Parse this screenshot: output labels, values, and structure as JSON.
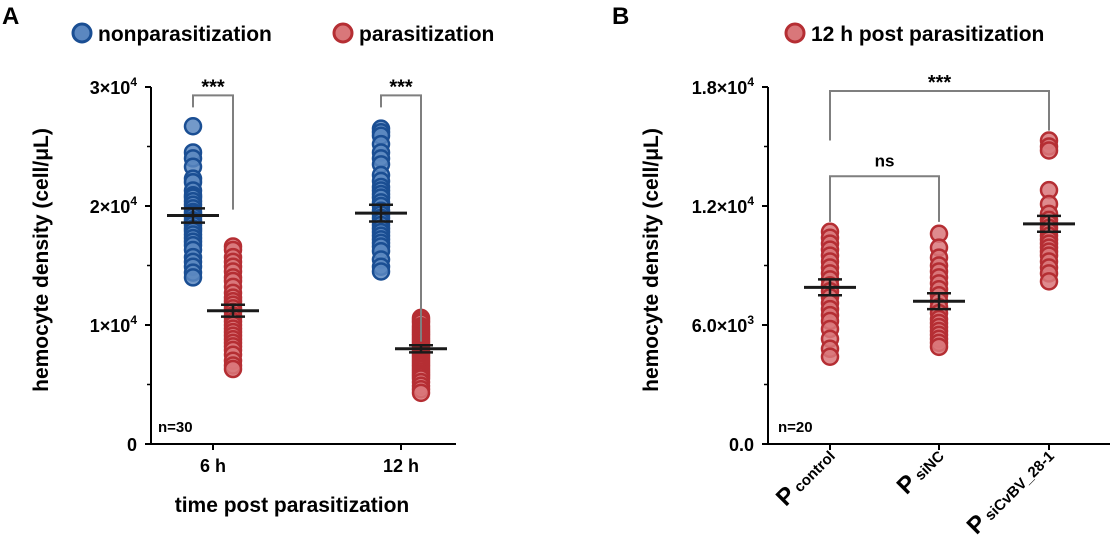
{
  "figure": {
    "colors": {
      "blue_fill": "#5b87c0",
      "blue_stroke": "#1a4e93",
      "red_fill": "#d9777a",
      "red_stroke": "#b52e33",
      "axis": "#000000",
      "bracket": "#7f7f7f",
      "summary": "#1a1a1a"
    }
  },
  "chart_data": [
    {
      "panel_label": "A",
      "type": "scatter",
      "subtype": "dot_plot_mean_sem",
      "ylabel": "hemocyte density (cell/μL)",
      "xlabel": "time post parasitization",
      "ylim": [
        0,
        30000
      ],
      "yticks": [
        {
          "value": 0,
          "base": "0",
          "exp": ""
        },
        {
          "value": 10000,
          "base": "1×10",
          "exp": "4"
        },
        {
          "value": 20000,
          "base": "2×10",
          "exp": "4"
        },
        {
          "value": 30000,
          "base": "3×10",
          "exp": "4"
        }
      ],
      "minor_ticks": [
        5000,
        15000,
        25000
      ],
      "categories": [
        "6 h",
        "12 h"
      ],
      "note": "n=30",
      "legend": [
        {
          "label": "nonparasitization",
          "series": 0
        },
        {
          "label": "parasitization",
          "series": 1
        }
      ],
      "series": [
        {
          "name": "nonparasitization",
          "color": "blue",
          "groups": [
            {
              "category": 0,
              "mean": 19200,
              "sem": 600,
              "values": [
                26700,
                24500,
                24000,
                23300,
                22300,
                22000,
                21300,
                20900,
                20700,
                20400,
                20100,
                19800,
                19500,
                19300,
                19100,
                18800,
                18600,
                18400,
                18100,
                17900,
                17600,
                17300,
                17000,
                16700,
                16300,
                15700,
                15300,
                14900,
                14400,
                14000
              ]
            },
            {
              "category": 1,
              "mean": 19400,
              "sem": 700,
              "values": [
                26500,
                26200,
                25900,
                25200,
                24500,
                24000,
                23500,
                22600,
                22100,
                21600,
                21300,
                21000,
                20700,
                20300,
                20000,
                19600,
                19300,
                19000,
                18700,
                18400,
                18100,
                17800,
                17500,
                17200,
                16900,
                16600,
                16200,
                15500,
                14900,
                14500
              ]
            }
          ]
        },
        {
          "name": "parasitization",
          "color": "red",
          "groups": [
            {
              "category": 0,
              "mean": 11200,
              "sem": 500,
              "values": [
                16600,
                16300,
                15700,
                15300,
                14900,
                14500,
                14000,
                13700,
                13200,
                12700,
                12300,
                12000,
                11700,
                11400,
                11100,
                10800,
                10600,
                10300,
                10000,
                9700,
                9400,
                9100,
                8800,
                8500,
                8200,
                7900,
                7500,
                7000,
                6600,
                6300
              ]
            },
            {
              "category": 1,
              "mean": 8000,
              "sem": 300,
              "values": [
                10600,
                10400,
                10200,
                9900,
                9700,
                9500,
                9300,
                9100,
                8900,
                8700,
                8500,
                8300,
                8100,
                7900,
                7700,
                7500,
                7300,
                7100,
                6900,
                6700,
                6500,
                6300,
                6100,
                5900,
                5700,
                5500,
                5200,
                4900,
                4600,
                4300
              ]
            }
          ]
        }
      ],
      "annotations": [
        {
          "text": "***",
          "from": {
            "series": 0,
            "category": 0
          },
          "to": {
            "series": 1,
            "category": 0
          },
          "bracket_y": 29300,
          "right_drop": 19700
        },
        {
          "text": "***",
          "from": {
            "series": 0,
            "category": 1
          },
          "to": {
            "series": 1,
            "category": 1
          },
          "bracket_y": 29300,
          "right_drop": 8600
        }
      ]
    },
    {
      "panel_label": "B",
      "type": "scatter",
      "subtype": "dot_plot_mean_sem",
      "ylabel": "hemocyte density (cell/μL)",
      "xlabel": "",
      "ylim": [
        0,
        18000
      ],
      "yticks": [
        {
          "value": 0,
          "base": "0.0",
          "exp": ""
        },
        {
          "value": 6000,
          "base": "6.0×10",
          "exp": "3"
        },
        {
          "value": 12000,
          "base": "1.2×10",
          "exp": "4"
        },
        {
          "value": 18000,
          "base": "1.8×10",
          "exp": "4"
        }
      ],
      "minor_ticks": [
        3000,
        9000,
        15000
      ],
      "categories": [
        {
          "main": "P",
          "sub": "control"
        },
        {
          "main": "P",
          "sub": "siNC"
        },
        {
          "main": "P",
          "sub": "siCvBV_28-1"
        }
      ],
      "note": "n=20",
      "legend": [
        {
          "label": "12 h post parasitization",
          "series": 0
        }
      ],
      "series": [
        {
          "name": "12 h post parasitization",
          "color": "red",
          "groups": [
            {
              "category": 0,
              "mean": 7900,
              "sem": 400,
              "values": [
                10700,
                10400,
                10100,
                9800,
                9500,
                9200,
                8900,
                8600,
                8300,
                8000,
                7700,
                7400,
                7100,
                6800,
                6500,
                6200,
                5800,
                5300,
                4800,
                4400
              ]
            },
            {
              "category": 1,
              "mean": 7200,
              "sem": 400,
              "values": [
                10600,
                9900,
                9400,
                9000,
                8700,
                8400,
                8100,
                7800,
                7500,
                7200,
                6900,
                6600,
                6300,
                6100,
                5900,
                5700,
                5500,
                5300,
                5100,
                4900
              ]
            },
            {
              "category": 2,
              "mean": 11100,
              "sem": 400,
              "values": [
                15300,
                15000,
                14800,
                12800,
                12100,
                11600,
                11300,
                11100,
                10900,
                10700,
                10500,
                10300,
                10100,
                9900,
                9700,
                9500,
                9200,
                8900,
                8600,
                8200
              ]
            }
          ]
        }
      ],
      "annotations": [
        {
          "text": "ns",
          "from": {
            "series": 0,
            "category": 0
          },
          "to": {
            "series": 0,
            "category": 1
          },
          "bracket_y": 13500,
          "left_drop": 11200,
          "right_drop": 11200
        },
        {
          "text": "***",
          "from": {
            "series": 0,
            "category": 0
          },
          "to": {
            "series": 0,
            "category": 2
          },
          "bracket_y": 17800,
          "left_drop": 15300,
          "right_drop": 15800
        }
      ]
    }
  ]
}
